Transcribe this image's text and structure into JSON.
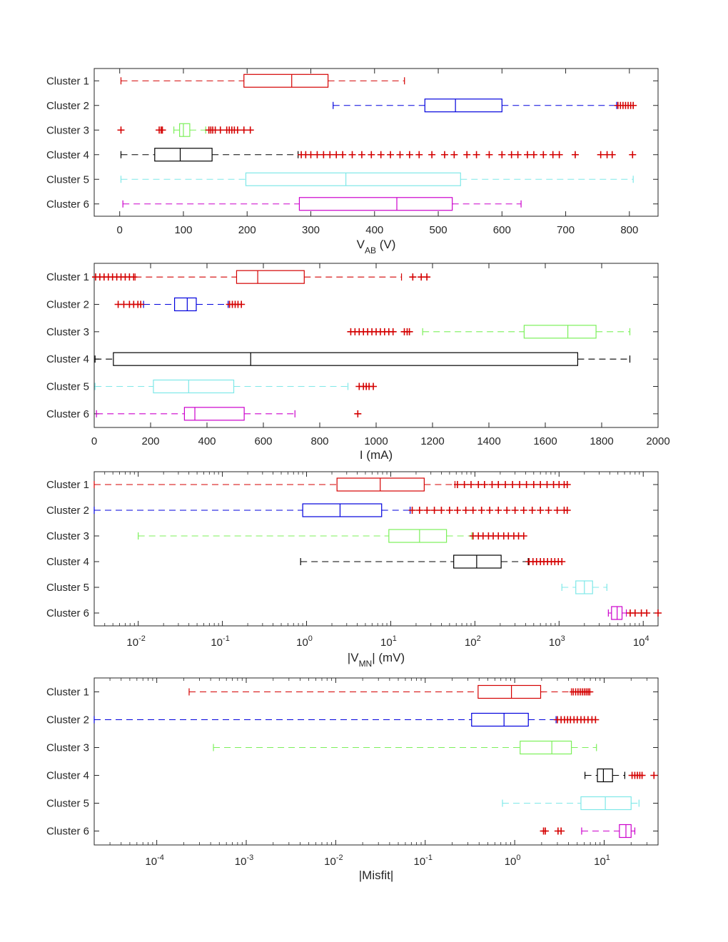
{
  "colors": {
    "Cluster 1": "#d40000",
    "Cluster 2": "#0000dd",
    "Cluster 3": "#7cf05a",
    "Cluster 4": "#000000",
    "Cluster 5": "#7fe8e8",
    "Cluster 6": "#cc00cc",
    "outlier": "#d40000"
  },
  "chart_data": [
    {
      "type": "boxplot",
      "orientation": "horizontal",
      "xlabel": {
        "main": "V",
        "sub": "AB",
        "rest": " (V)"
      },
      "scale": "linear",
      "xlim": [
        -40,
        845
      ],
      "ticks": [
        0,
        100,
        200,
        300,
        400,
        500,
        600,
        700,
        800
      ],
      "tick_labels": [
        "0",
        "100",
        "200",
        "300",
        "400",
        "500",
        "600",
        "700",
        "800"
      ],
      "categories": [
        "Cluster 1",
        "Cluster 2",
        "Cluster 3",
        "Cluster 4",
        "Cluster 5",
        "Cluster 6"
      ],
      "boxes": [
        {
          "name": "Cluster 1",
          "whisker_low": 2,
          "q1": 195,
          "median": 270,
          "q3": 327,
          "whisker_high": 447,
          "outliers": []
        },
        {
          "name": "Cluster 2",
          "whisker_low": 335,
          "q1": 479,
          "median": 527,
          "q3": 600,
          "whisker_high": 780,
          "outliers": [
            782,
            786,
            790,
            794,
            798,
            802,
            806
          ]
        },
        {
          "name": "Cluster 3",
          "whisker_low": 85,
          "q1": 94,
          "median": 100,
          "q3": 110,
          "whisker_high": 135,
          "outliers": [
            2,
            62,
            65,
            67,
            140,
            143,
            146,
            150,
            158,
            168,
            172,
            176,
            180,
            185,
            195,
            205
          ]
        },
        {
          "name": "Cluster 4",
          "whisker_low": 2,
          "q1": 55,
          "median": 95,
          "q3": 145,
          "whisker_high": 280,
          "outliers": [
            285,
            292,
            300,
            310,
            320,
            330,
            340,
            350,
            365,
            380,
            395,
            410,
            425,
            440,
            455,
            470,
            490,
            510,
            525,
            545,
            560,
            580,
            600,
            615,
            625,
            640,
            650,
            665,
            680,
            690,
            715,
            755,
            765,
            773,
            805
          ]
        },
        {
          "name": "Cluster 5",
          "whisker_low": 2,
          "q1": 198,
          "median": 355,
          "q3": 535,
          "whisker_high": 806,
          "outliers": []
        },
        {
          "name": "Cluster 6",
          "whisker_low": 5,
          "q1": 282,
          "median": 435,
          "q3": 522,
          "whisker_high": 630,
          "outliers": []
        }
      ]
    },
    {
      "type": "boxplot",
      "orientation": "horizontal",
      "xlabel": {
        "main": "I (mA)",
        "sub": "",
        "rest": ""
      },
      "scale": "linear",
      "xlim": [
        0,
        2000
      ],
      "ticks": [
        0,
        200,
        400,
        600,
        800,
        1000,
        1200,
        1400,
        1600,
        1800,
        2000
      ],
      "tick_labels": [
        "0",
        "200",
        "400",
        "600",
        "800",
        "1000",
        "1200",
        "1400",
        "1600",
        "1800",
        "2000"
      ],
      "categories": [
        "Cluster 1",
        "Cluster 2",
        "Cluster 3",
        "Cluster 4",
        "Cluster 5",
        "Cluster 6"
      ],
      "boxes": [
        {
          "name": "Cluster 1",
          "whisker_low": 145,
          "q1": 505,
          "median": 580,
          "q3": 745,
          "whisker_high": 1090,
          "outliers": [
            5,
            20,
            35,
            50,
            65,
            80,
            95,
            110,
            125,
            140,
            1130,
            1160,
            1180
          ]
        },
        {
          "name": "Cluster 2",
          "whisker_low": 175,
          "q1": 285,
          "median": 330,
          "q3": 362,
          "whisker_high": 475,
          "outliers": [
            85,
            105,
            125,
            140,
            155,
            165,
            480,
            490,
            500,
            510,
            522
          ]
        },
        {
          "name": "Cluster 3",
          "whisker_low": 1165,
          "q1": 1525,
          "median": 1680,
          "q3": 1780,
          "whisker_high": 1900,
          "outliers": [
            910,
            925,
            940,
            955,
            970,
            985,
            1000,
            1015,
            1030,
            1045,
            1060,
            1100,
            1110,
            1118
          ]
        },
        {
          "name": "Cluster 4",
          "whisker_low": 3,
          "q1": 68,
          "median": 555,
          "q3": 1715,
          "whisker_high": 1900,
          "outliers": []
        },
        {
          "name": "Cluster 5",
          "whisker_low": 3,
          "q1": 210,
          "median": 335,
          "q3": 495,
          "whisker_high": 900,
          "outliers": [
            940,
            955,
            965,
            975,
            990
          ]
        },
        {
          "name": "Cluster 6",
          "whisker_low": 8,
          "q1": 320,
          "median": 357,
          "q3": 532,
          "whisker_high": 712,
          "outliers": [
            935
          ]
        }
      ]
    },
    {
      "type": "boxplot",
      "orientation": "horizontal",
      "xlabel": {
        "main": "|V",
        "sub": "MN",
        "rest": "| (mV)"
      },
      "scale": "log",
      "xlim": [
        0.003,
        15000
      ],
      "ticks": [
        0.01,
        0.1,
        1,
        10,
        100,
        1000,
        10000
      ],
      "tick_labels": [
        [
          "10",
          "-2"
        ],
        [
          "10",
          "-1"
        ],
        [
          "10",
          "0"
        ],
        [
          "10",
          "1"
        ],
        [
          "10",
          "2"
        ],
        [
          "10",
          "3"
        ],
        [
          "10",
          "4"
        ]
      ],
      "categories": [
        "Cluster 1",
        "Cluster 2",
        "Cluster 3",
        "Cluster 4",
        "Cluster 5",
        "Cluster 6"
      ],
      "boxes": [
        {
          "name": "Cluster 1",
          "whisker_low": 0.003,
          "q1": 2.3,
          "median": 7.5,
          "q3": 25,
          "whisker_high": 58,
          "outliers": [
            62,
            75,
            90,
            110,
            130,
            160,
            190,
            230,
            280,
            340,
            410,
            500,
            600,
            720,
            860,
            1000,
            1150,
            1250
          ]
        },
        {
          "name": "Cluster 2",
          "whisker_low": 0.003,
          "q1": 0.9,
          "median": 2.5,
          "q3": 7.8,
          "whisker_high": 17,
          "outliers": [
            18,
            22,
            27,
            33,
            40,
            50,
            62,
            78,
            95,
            120,
            150,
            190,
            240,
            300,
            380,
            480,
            600,
            750,
            950,
            1150,
            1250
          ]
        },
        {
          "name": "Cluster 3",
          "whisker_low": 0.01,
          "q1": 9.5,
          "median": 22,
          "q3": 46,
          "whisker_high": 92,
          "outliers": [
            95,
            110,
            125,
            145,
            165,
            190,
            220,
            250,
            290,
            330,
            380
          ]
        },
        {
          "name": "Cluster 4",
          "whisker_low": 0.85,
          "q1": 56,
          "median": 105,
          "q3": 205,
          "whisker_high": 430,
          "outliers": [
            440,
            490,
            540,
            600,
            660,
            730,
            810,
            890,
            980,
            1080
          ]
        },
        {
          "name": "Cluster 5",
          "whisker_low": 1080,
          "q1": 1580,
          "median": 2000,
          "q3": 2500,
          "whisker_high": 3700,
          "outliers": []
        },
        {
          "name": "Cluster 6",
          "whisker_low": 3850,
          "q1": 4200,
          "median": 4900,
          "q3": 5600,
          "whisker_high": 6300,
          "outliers": [
            7000,
            8000,
            9500,
            11000,
            15000
          ]
        }
      ]
    },
    {
      "type": "boxplot",
      "orientation": "horizontal",
      "xlabel": {
        "main": "|Misfit|",
        "sub": "",
        "rest": ""
      },
      "scale": "log",
      "xlim": [
        2e-05,
        40
      ],
      "ticks": [
        0.0001,
        0.001,
        0.01,
        0.1,
        1,
        10
      ],
      "tick_labels": [
        [
          "10",
          "-4"
        ],
        [
          "10",
          "-3"
        ],
        [
          "10",
          "-2"
        ],
        [
          "10",
          "-1"
        ],
        [
          "10",
          "0"
        ],
        [
          "10",
          "1"
        ]
      ],
      "categories": [
        "Cluster 1",
        "Cluster 2",
        "Cluster 3",
        "Cluster 4",
        "Cluster 5",
        "Cluster 6"
      ],
      "boxes": [
        {
          "name": "Cluster 1",
          "whisker_low": 0.00023,
          "q1": 0.39,
          "median": 0.92,
          "q3": 1.95,
          "whisker_high": 4.3,
          "outliers": [
            4.5,
            4.8,
            5.1,
            5.4,
            5.7,
            6.0,
            6.3,
            6.6,
            6.9
          ]
        },
        {
          "name": "Cluster 2",
          "whisker_low": 2e-05,
          "q1": 0.33,
          "median": 0.76,
          "q3": 1.42,
          "whisker_high": 2.9,
          "outliers": [
            3.0,
            3.3,
            3.6,
            3.9,
            4.2,
            4.6,
            5.0,
            5.5,
            6.0,
            6.6,
            7.3,
            8.0
          ]
        },
        {
          "name": "Cluster 3",
          "whisker_low": 0.00043,
          "q1": 1.15,
          "median": 2.6,
          "q3": 4.3,
          "whisker_high": 8.2,
          "outliers": []
        },
        {
          "name": "Cluster 4",
          "whisker_low": 6.1,
          "q1": 8.4,
          "median": 9.8,
          "q3": 12.4,
          "whisker_high": 17,
          "outliers": [
            20.5,
            22,
            23.5,
            25,
            26.5,
            36
          ]
        },
        {
          "name": "Cluster 5",
          "whisker_low": 0.73,
          "q1": 5.5,
          "median": 10.3,
          "q3": 20,
          "whisker_high": 24.5,
          "outliers": []
        },
        {
          "name": "Cluster 6",
          "whisker_low": 5.6,
          "q1": 14.8,
          "median": 17.5,
          "q3": 20,
          "whisker_high": 22,
          "outliers": [
            2.1,
            2.2,
            3.05,
            3.3
          ]
        }
      ]
    }
  ]
}
